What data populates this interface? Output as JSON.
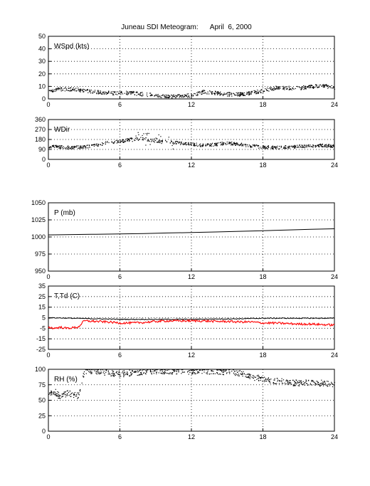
{
  "title": "Juneau SDI Meteogram:      April  6, 2000",
  "chart_data": [
    {
      "type": "scatter",
      "label": "WSpd (kts)",
      "ylim": [
        0,
        50
      ],
      "yticks": [
        0,
        10,
        20,
        30,
        40,
        50
      ],
      "xlim": [
        0,
        24
      ],
      "xticks": [
        0,
        6,
        12,
        18,
        24
      ],
      "grid": true,
      "series": [
        {
          "color": "#000000",
          "x": [
            0,
            1,
            2,
            3,
            4,
            5,
            6,
            7,
            8,
            9,
            10,
            11,
            12,
            13,
            14,
            15,
            16,
            17,
            18,
            19,
            20,
            21,
            22,
            23,
            24
          ],
          "y": [
            7,
            8,
            8,
            7,
            6,
            5,
            5,
            5,
            4,
            3,
            2,
            3,
            3,
            6,
            5,
            4,
            4,
            5,
            7,
            9,
            9,
            9,
            10,
            11,
            9
          ]
        }
      ]
    },
    {
      "type": "scatter",
      "label": "WDir",
      "ylim": [
        0,
        360
      ],
      "yticks": [
        0,
        90,
        180,
        270,
        360
      ],
      "xlim": [
        0,
        24
      ],
      "xticks": [
        0,
        6,
        12,
        18,
        24
      ],
      "grid": true,
      "series": [
        {
          "color": "#000000",
          "x": [
            0,
            1,
            2,
            3,
            4,
            5,
            6,
            7,
            8,
            9,
            10,
            11,
            12,
            13,
            14,
            15,
            16,
            17,
            18,
            19,
            20,
            21,
            22,
            23,
            24
          ],
          "y": [
            120,
            115,
            110,
            115,
            130,
            155,
            165,
            185,
            190,
            170,
            160,
            150,
            140,
            130,
            140,
            150,
            140,
            125,
            115,
            110,
            115,
            120,
            125,
            130,
            125
          ]
        }
      ]
    },
    {
      "type": "line",
      "label": "P (mb)",
      "ylim": [
        950,
        1050
      ],
      "yticks": [
        950,
        975,
        1000,
        1025,
        1050
      ],
      "xlim": [
        0,
        24
      ],
      "xticks": [
        0,
        6,
        12,
        18,
        24
      ],
      "grid": true,
      "series": [
        {
          "color": "#000000",
          "x": [
            0,
            2,
            4,
            6,
            8,
            10,
            12,
            14,
            16,
            18,
            20,
            22,
            24
          ],
          "y": [
            1003,
            1003.5,
            1004,
            1004.5,
            1005,
            1005.8,
            1006.5,
            1007.3,
            1008.2,
            1009.2,
            1010.2,
            1011.2,
            1012
          ]
        }
      ]
    },
    {
      "type": "line",
      "label": "T,Td (C)",
      "ylim": [
        -25,
        35
      ],
      "yticks": [
        -25,
        -15,
        -5,
        5,
        15,
        25,
        35
      ],
      "xlim": [
        0,
        24
      ],
      "xticks": [
        0,
        6,
        12,
        18,
        24
      ],
      "grid": true,
      "series": [
        {
          "color": "#000000",
          "x": [
            0,
            2,
            4,
            6,
            8,
            10,
            12,
            14,
            16,
            18,
            20,
            22,
            24
          ],
          "y": [
            5,
            4.5,
            4,
            3.5,
            3.5,
            3.5,
            3.5,
            3.8,
            4,
            4.5,
            4.5,
            4.5,
            4.5
          ]
        },
        {
          "color": "#ff0000",
          "x": [
            0,
            0.5,
            1,
            1.5,
            2,
            2.5,
            3,
            4,
            5,
            6,
            7,
            8,
            9,
            10,
            11,
            12,
            13,
            14,
            15,
            16,
            17,
            18,
            19,
            20,
            21,
            22,
            23,
            24
          ],
          "y": [
            -4,
            -5,
            -4,
            -5,
            -4.5,
            -4,
            2,
            1.5,
            1,
            0,
            0,
            0.5,
            1.5,
            2,
            2,
            2,
            2,
            1.5,
            1.5,
            1,
            1,
            0,
            0,
            -0.5,
            -1,
            -1,
            -1.5,
            -2
          ]
        }
      ]
    },
    {
      "type": "scatter",
      "label": "RH (%)",
      "ylim": [
        0,
        100
      ],
      "yticks": [
        0,
        25,
        50,
        75,
        100
      ],
      "xlim": [
        0,
        24
      ],
      "xticks": [
        0,
        6,
        12,
        18,
        24
      ],
      "grid": true,
      "series": [
        {
          "color": "#000000",
          "x": [
            0,
            0.5,
            1,
            1.5,
            2,
            2.5,
            3,
            4,
            5,
            6,
            7,
            8,
            9,
            10,
            11,
            12,
            13,
            14,
            15,
            16,
            17,
            18,
            19,
            20,
            21,
            22,
            23,
            24
          ],
          "y": [
            60,
            65,
            55,
            62,
            60,
            58,
            98,
            98,
            95,
            93,
            95,
            97,
            98,
            98,
            97,
            97,
            98,
            97,
            97,
            95,
            88,
            85,
            82,
            80,
            78,
            80,
            78,
            75
          ]
        }
      ]
    }
  ]
}
